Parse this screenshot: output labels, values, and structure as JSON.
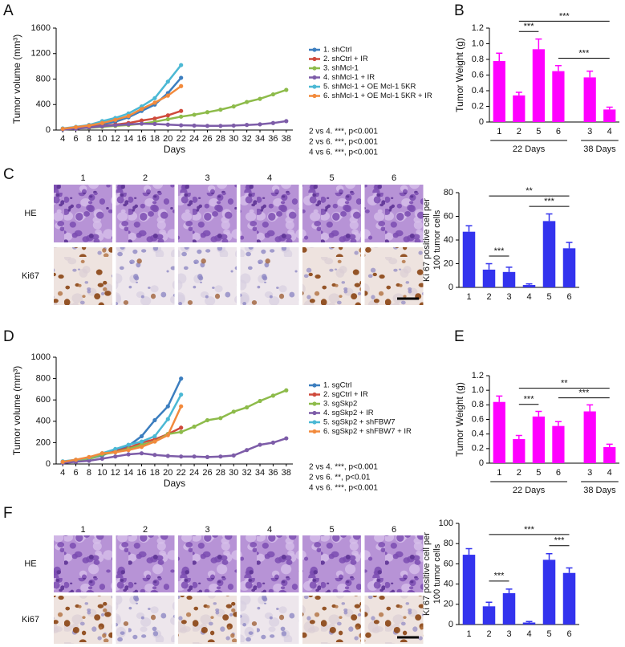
{
  "panels": {
    "letters": [
      "A",
      "B",
      "C",
      "D",
      "E",
      "F"
    ],
    "histology": [
      {
        "columns": [
          "1",
          "2",
          "3",
          "4",
          "5",
          "6"
        ],
        "rows": [
          "HE",
          "Ki67"
        ]
      },
      {
        "columns": [
          "1",
          "2",
          "3",
          "4",
          "5",
          "6"
        ],
        "rows": [
          "HE",
          "Ki67"
        ]
      }
    ]
  },
  "chart_data": [
    {
      "type": "line",
      "ylabel": "Tumor volume (mm³)",
      "xlabel": "Days",
      "x": [
        4,
        6,
        8,
        10,
        12,
        14,
        16,
        18,
        20,
        22,
        24,
        26,
        28,
        30,
        32,
        34,
        36,
        38
      ],
      "xlim": [
        3,
        39
      ],
      "xticks": [
        4,
        6,
        8,
        10,
        12,
        14,
        16,
        18,
        20,
        22,
        24,
        26,
        28,
        30,
        32,
        34,
        36,
        38
      ],
      "ylim": [
        0,
        1600
      ],
      "yticks": [
        0,
        400,
        800,
        1200,
        1600
      ],
      "series": [
        {
          "name": "1. shCtrl",
          "color": "#3c7ebf",
          "values": [
            20,
            35,
            55,
            90,
            130,
            200,
            300,
            400,
            580,
            820,
            null,
            null,
            null,
            null,
            null,
            null,
            null,
            null
          ]
        },
        {
          "name": "2. shCtrl + IR",
          "color": "#cf4a3c",
          "values": [
            20,
            30,
            45,
            65,
            85,
            110,
            150,
            180,
            230,
            300,
            null,
            null,
            null,
            null,
            null,
            null,
            null,
            null
          ]
        },
        {
          "name": "3. shMcl-1",
          "color": "#8dbb4a",
          "values": [
            15,
            25,
            35,
            50,
            65,
            80,
            100,
            130,
            170,
            210,
            240,
            280,
            320,
            370,
            440,
            490,
            560,
            630
          ]
        },
        {
          "name": "4. shMcl-1 + IR",
          "color": "#7d5ca8",
          "values": [
            10,
            20,
            40,
            60,
            75,
            90,
            100,
            95,
            85,
            75,
            70,
            65,
            65,
            70,
            80,
            90,
            110,
            140
          ]
        },
        {
          "name": "5. shMcl-1 + OE Mcl-1 5KR",
          "color": "#4bb8d4",
          "values": [
            25,
            50,
            80,
            140,
            190,
            260,
            370,
            500,
            760,
            1020,
            null,
            null,
            null,
            null,
            null,
            null,
            null,
            null
          ]
        },
        {
          "name": "6. shMcl-1 + OE Mcl-1 5KR + IR",
          "color": "#f28a3c",
          "values": [
            20,
            45,
            70,
            110,
            160,
            220,
            330,
            430,
            540,
            690,
            null,
            null,
            null,
            null,
            null,
            null,
            null,
            null
          ]
        }
      ],
      "annotations": [
        "2 vs 4. ***, p<0.001",
        "2 vs 6. ***, p<0.001",
        "4 vs 6. ***, p<0.001"
      ]
    },
    {
      "type": "bar",
      "ylabel": "Tumor Weight (g)",
      "color": "#ff00ff",
      "categories": [
        "1",
        "2",
        "5",
        "6",
        "3",
        "4"
      ],
      "values": [
        0.78,
        0.34,
        0.93,
        0.65,
        0.57,
        0.16
      ],
      "errors": [
        0.1,
        0.04,
        0.13,
        0.07,
        0.08,
        0.03
      ],
      "ylim": [
        0,
        1.2
      ],
      "yticks": [
        0,
        0.2,
        0.4,
        0.6,
        0.8,
        {
          "value": 1,
          "label": "1.0"
        },
        1.2
      ],
      "groups": [
        {
          "label": "22 Days",
          "categories": [
            "1",
            "2",
            "5",
            "6"
          ]
        },
        {
          "label": "38 Days",
          "categories": [
            "3",
            "4"
          ]
        }
      ],
      "comparisons": [
        {
          "pair": [
            "2",
            "5"
          ],
          "label": "***"
        },
        {
          "pair": [
            "6",
            "4"
          ],
          "label": "***"
        },
        {
          "pair": [
            "2",
            "4"
          ],
          "label": "***"
        }
      ]
    },
    {
      "type": "bar",
      "ylabel": [
        "Ki 67 positive cell per",
        "100 tumor cells"
      ],
      "color": "#3333ee",
      "categories": [
        "1",
        "2",
        "3",
        "4",
        "5",
        "6"
      ],
      "values": [
        47,
        15,
        13,
        2,
        56,
        33
      ],
      "errors": [
        5,
        5,
        4,
        1,
        6,
        5
      ],
      "ylim": [
        0,
        80
      ],
      "yticks": [
        0,
        20,
        40,
        60,
        80
      ],
      "comparisons": [
        {
          "pair": [
            "2",
            "3"
          ],
          "label": "***"
        },
        {
          "pair": [
            "4",
            "6"
          ],
          "label": "***"
        },
        {
          "pair": [
            "2",
            "6"
          ],
          "label": "**"
        }
      ]
    },
    {
      "type": "line",
      "ylabel": "Tumor volume (mm³)",
      "xlabel": "Days",
      "x": [
        4,
        6,
        8,
        10,
        12,
        14,
        16,
        18,
        20,
        22,
        24,
        26,
        28,
        30,
        32,
        34,
        36,
        38
      ],
      "xlim": [
        3,
        39
      ],
      "xticks": [
        4,
        6,
        8,
        10,
        12,
        14,
        16,
        18,
        20,
        22,
        24,
        26,
        28,
        30,
        32,
        34,
        36,
        38
      ],
      "ylim": [
        0,
        1000
      ],
      "yticks": [
        0,
        200,
        400,
        600,
        800,
        1000
      ],
      "series": [
        {
          "name": "1. sgCtrl",
          "color": "#3c7ebf",
          "values": [
            20,
            35,
            50,
            80,
            130,
            170,
            260,
            410,
            540,
            800,
            null,
            null,
            null,
            null,
            null,
            null,
            null,
            null
          ]
        },
        {
          "name": "2. sgCtrl + IR",
          "color": "#cf4a3c",
          "values": [
            20,
            30,
            50,
            100,
            120,
            150,
            200,
            230,
            280,
            340,
            null,
            null,
            null,
            null,
            null,
            null,
            null,
            null
          ]
        },
        {
          "name": "3. sgSkp2",
          "color": "#8dbb4a",
          "values": [
            15,
            25,
            45,
            90,
            110,
            140,
            180,
            210,
            280,
            300,
            350,
            410,
            430,
            490,
            530,
            590,
            640,
            690
          ]
        },
        {
          "name": "4. sgSkp2 + IR",
          "color": "#7d5ca8",
          "values": [
            10,
            20,
            30,
            50,
            70,
            90,
            100,
            85,
            75,
            70,
            70,
            65,
            70,
            80,
            130,
            180,
            200,
            240
          ]
        },
        {
          "name": "5. sgSkp2 + shFBW7",
          "color": "#4bb8d4",
          "values": [
            25,
            40,
            60,
            100,
            140,
            180,
            210,
            260,
            420,
            650,
            null,
            null,
            null,
            null,
            null,
            null,
            null,
            null
          ]
        },
        {
          "name": "6. sgSkp2 + shFBW7 + IR",
          "color": "#f28a3c",
          "values": [
            20,
            40,
            65,
            100,
            110,
            130,
            160,
            210,
            270,
            540,
            null,
            null,
            null,
            null,
            null,
            null,
            null,
            null
          ]
        }
      ],
      "annotations": [
        "2 vs 4. ***, p<0.001",
        "2 vs 6. **, p<0.01",
        "4 vs 6. ***, p<0.001"
      ]
    },
    {
      "type": "bar",
      "ylabel": "Tumor Weight (g)",
      "color": "#ff00ff",
      "categories": [
        "1",
        "2",
        "5",
        "6",
        "3",
        "4"
      ],
      "values": [
        0.84,
        0.33,
        0.64,
        0.51,
        0.71,
        0.22
      ],
      "errors": [
        0.08,
        0.05,
        0.07,
        0.06,
        0.09,
        0.04
      ],
      "ylim": [
        0,
        1.2
      ],
      "yticks": [
        0,
        0.2,
        0.4,
        0.6,
        0.8,
        {
          "value": 1,
          "label": "1.0"
        },
        1.2
      ],
      "groups": [
        {
          "label": "22 Days",
          "categories": [
            "1",
            "2",
            "5",
            "6"
          ]
        },
        {
          "label": "38 Days",
          "categories": [
            "3",
            "4"
          ]
        }
      ],
      "comparisons": [
        {
          "pair": [
            "2",
            "5"
          ],
          "label": "***"
        },
        {
          "pair": [
            "6",
            "4"
          ],
          "label": "***"
        },
        {
          "pair": [
            "2",
            "4"
          ],
          "label": "**"
        }
      ]
    },
    {
      "type": "bar",
      "ylabel": [
        "Ki 67 positive cell per",
        "100 tumor cells"
      ],
      "color": "#3333ee",
      "categories": [
        "1",
        "2",
        "3",
        "4",
        "5",
        "6"
      ],
      "values": [
        69,
        18,
        31,
        2,
        64,
        51
      ],
      "errors": [
        6,
        4,
        4,
        1,
        6,
        5
      ],
      "ylim": [
        0,
        100
      ],
      "yticks": [
        0,
        20,
        40,
        60,
        80,
        100
      ],
      "comparisons": [
        {
          "pair": [
            "2",
            "3"
          ],
          "label": "***"
        },
        {
          "pair": [
            "5",
            "6"
          ],
          "label": "***"
        },
        {
          "pair": [
            "2",
            "6"
          ],
          "label": "***"
        }
      ]
    }
  ]
}
